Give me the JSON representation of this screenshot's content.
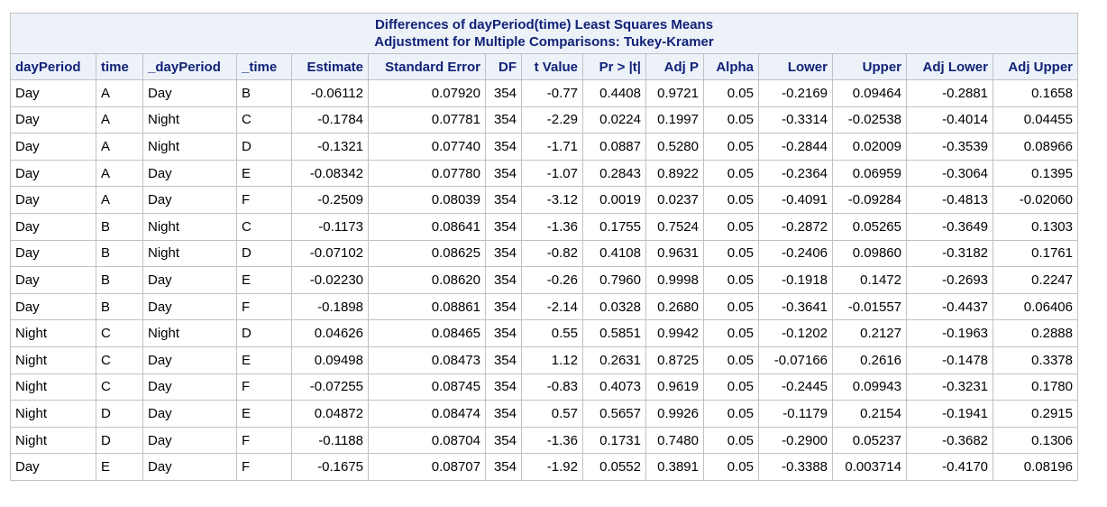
{
  "title_line1": "Differences of dayPeriod(time) Least Squares Means",
  "title_line2": "Adjustment for Multiple Comparisons: Tukey-Kramer",
  "columns": [
    "dayPeriod",
    "time",
    "_dayPeriod",
    "_time",
    "Estimate",
    "Standard Error",
    "DF",
    "t Value",
    "Pr > |t|",
    "Adj P",
    "Alpha",
    "Lower",
    "Upper",
    "Adj Lower",
    "Adj Upper"
  ],
  "rows": [
    [
      "Day",
      "A",
      "Day",
      "B",
      "-0.06112",
      "0.07920",
      "354",
      "-0.77",
      "0.4408",
      "0.9721",
      "0.05",
      "-0.2169",
      "0.09464",
      "-0.2881",
      "0.1658"
    ],
    [
      "Day",
      "A",
      "Night",
      "C",
      "-0.1784",
      "0.07781",
      "354",
      "-2.29",
      "0.0224",
      "0.1997",
      "0.05",
      "-0.3314",
      "-0.02538",
      "-0.4014",
      "0.04455"
    ],
    [
      "Day",
      "A",
      "Night",
      "D",
      "-0.1321",
      "0.07740",
      "354",
      "-1.71",
      "0.0887",
      "0.5280",
      "0.05",
      "-0.2844",
      "0.02009",
      "-0.3539",
      "0.08966"
    ],
    [
      "Day",
      "A",
      "Day",
      "E",
      "-0.08342",
      "0.07780",
      "354",
      "-1.07",
      "0.2843",
      "0.8922",
      "0.05",
      "-0.2364",
      "0.06959",
      "-0.3064",
      "0.1395"
    ],
    [
      "Day",
      "A",
      "Day",
      "F",
      "-0.2509",
      "0.08039",
      "354",
      "-3.12",
      "0.0019",
      "0.0237",
      "0.05",
      "-0.4091",
      "-0.09284",
      "-0.4813",
      "-0.02060"
    ],
    [
      "Day",
      "B",
      "Night",
      "C",
      "-0.1173",
      "0.08641",
      "354",
      "-1.36",
      "0.1755",
      "0.7524",
      "0.05",
      "-0.2872",
      "0.05265",
      "-0.3649",
      "0.1303"
    ],
    [
      "Day",
      "B",
      "Night",
      "D",
      "-0.07102",
      "0.08625",
      "354",
      "-0.82",
      "0.4108",
      "0.9631",
      "0.05",
      "-0.2406",
      "0.09860",
      "-0.3182",
      "0.1761"
    ],
    [
      "Day",
      "B",
      "Day",
      "E",
      "-0.02230",
      "0.08620",
      "354",
      "-0.26",
      "0.7960",
      "0.9998",
      "0.05",
      "-0.1918",
      "0.1472",
      "-0.2693",
      "0.2247"
    ],
    [
      "Day",
      "B",
      "Day",
      "F",
      "-0.1898",
      "0.08861",
      "354",
      "-2.14",
      "0.0328",
      "0.2680",
      "0.05",
      "-0.3641",
      "-0.01557",
      "-0.4437",
      "0.06406"
    ],
    [
      "Night",
      "C",
      "Night",
      "D",
      "0.04626",
      "0.08465",
      "354",
      "0.55",
      "0.5851",
      "0.9942",
      "0.05",
      "-0.1202",
      "0.2127",
      "-0.1963",
      "0.2888"
    ],
    [
      "Night",
      "C",
      "Day",
      "E",
      "0.09498",
      "0.08473",
      "354",
      "1.12",
      "0.2631",
      "0.8725",
      "0.05",
      "-0.07166",
      "0.2616",
      "-0.1478",
      "0.3378"
    ],
    [
      "Night",
      "C",
      "Day",
      "F",
      "-0.07255",
      "0.08745",
      "354",
      "-0.83",
      "0.4073",
      "0.9619",
      "0.05",
      "-0.2445",
      "0.09943",
      "-0.3231",
      "0.1780"
    ],
    [
      "Night",
      "D",
      "Day",
      "E",
      "0.04872",
      "0.08474",
      "354",
      "0.57",
      "0.5657",
      "0.9926",
      "0.05",
      "-0.1179",
      "0.2154",
      "-0.1941",
      "0.2915"
    ],
    [
      "Night",
      "D",
      "Day",
      "F",
      "-0.1188",
      "0.08704",
      "354",
      "-1.36",
      "0.1731",
      "0.7480",
      "0.05",
      "-0.2900",
      "0.05237",
      "-0.3682",
      "0.1306"
    ],
    [
      "Day",
      "E",
      "Day",
      "F",
      "-0.1675",
      "0.08707",
      "354",
      "-1.92",
      "0.0552",
      "0.3891",
      "0.05",
      "-0.3388",
      "0.003714",
      "-0.4170",
      "0.08196"
    ]
  ],
  "colors": {
    "header_bg": "#edf2f9",
    "header_text": "#112277",
    "border": "#c1c1c1"
  }
}
